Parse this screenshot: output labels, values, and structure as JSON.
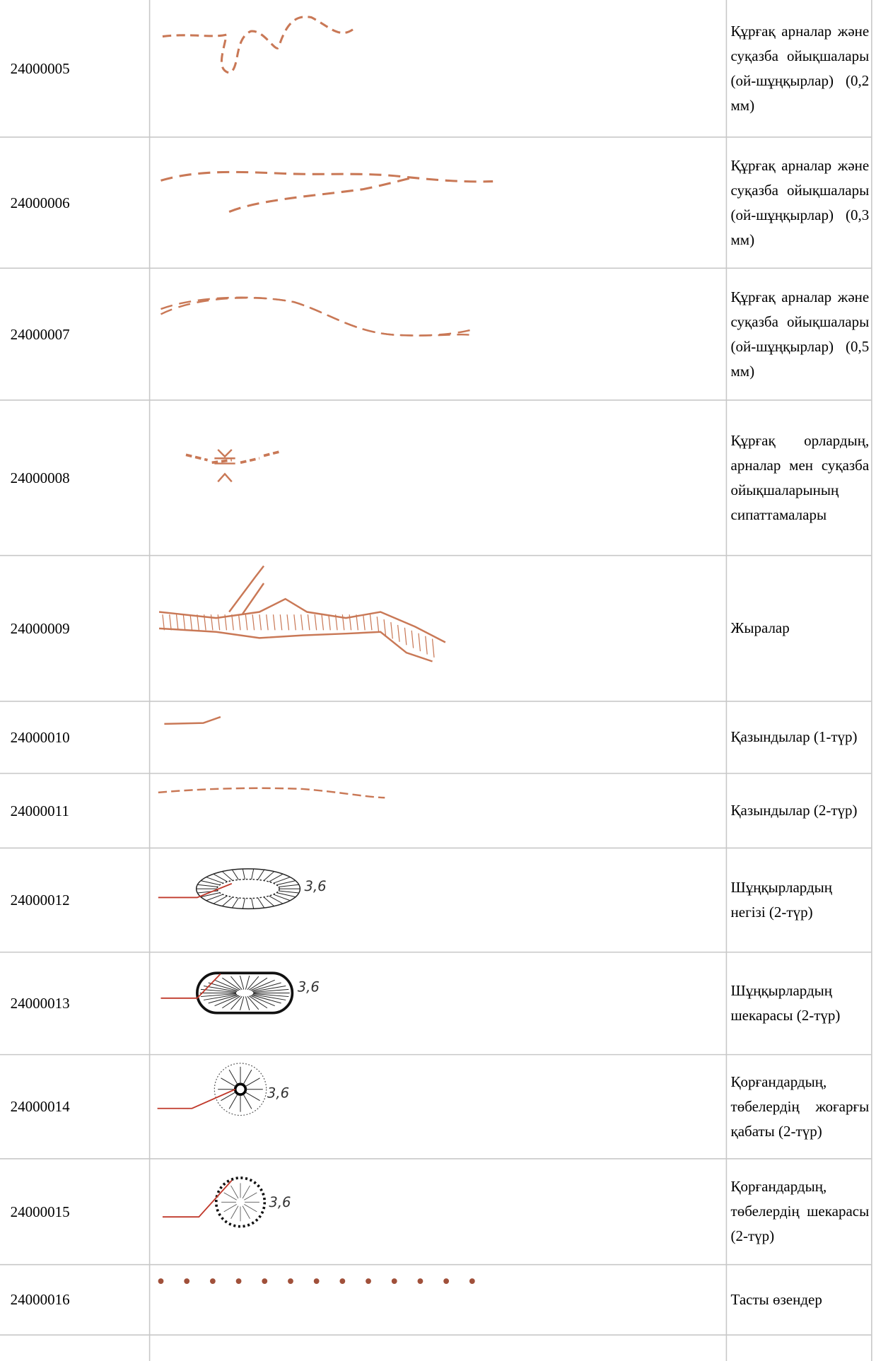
{
  "table": {
    "rows": [
      {
        "code": "24000005",
        "description": "Құрғақ арналар және суқазба ойықшалары (ой-шұңқырлар) (0,2 мм)"
      },
      {
        "code": "24000006",
        "description": "Құрғақ арналар және суқазба ойықшалары (ой-шұңқырлар) (0,3 мм)"
      },
      {
        "code": "24000007",
        "description": "Құрғақ арналар және суқазба ойықшалары (ой-шұңқырлар) (0,5 мм)"
      },
      {
        "code": "24000008",
        "description": "Құрғақ орлардың, арналар мен суқазба ойықшаларының сипаттамалары"
      },
      {
        "code": "24000009",
        "description": "Жыралар"
      },
      {
        "code": "24000010",
        "description": "Қазындылар (1-түр)"
      },
      {
        "code": "24000011",
        "description": "Қазындылар (2-түр)"
      },
      {
        "code": "24000012",
        "description": "Шұңқырлардың негізі (2-түр)",
        "symbol_label": "3,6"
      },
      {
        "code": "24000013",
        "description": "Шұңқырлардың шекарасы (2-түр)",
        "symbol_label": "3,6"
      },
      {
        "code": "24000014",
        "description": "Қорғандардың, төбелердің жоғарғы қабаты (2-түр)",
        "symbol_label": "3,6"
      },
      {
        "code": "24000015",
        "description": "Қорғандардың, төбелердің шекарасы (2-түр)",
        "symbol_label": "3,6"
      },
      {
        "code": "24000016",
        "description": "Тасты өзендер"
      }
    ]
  }
}
